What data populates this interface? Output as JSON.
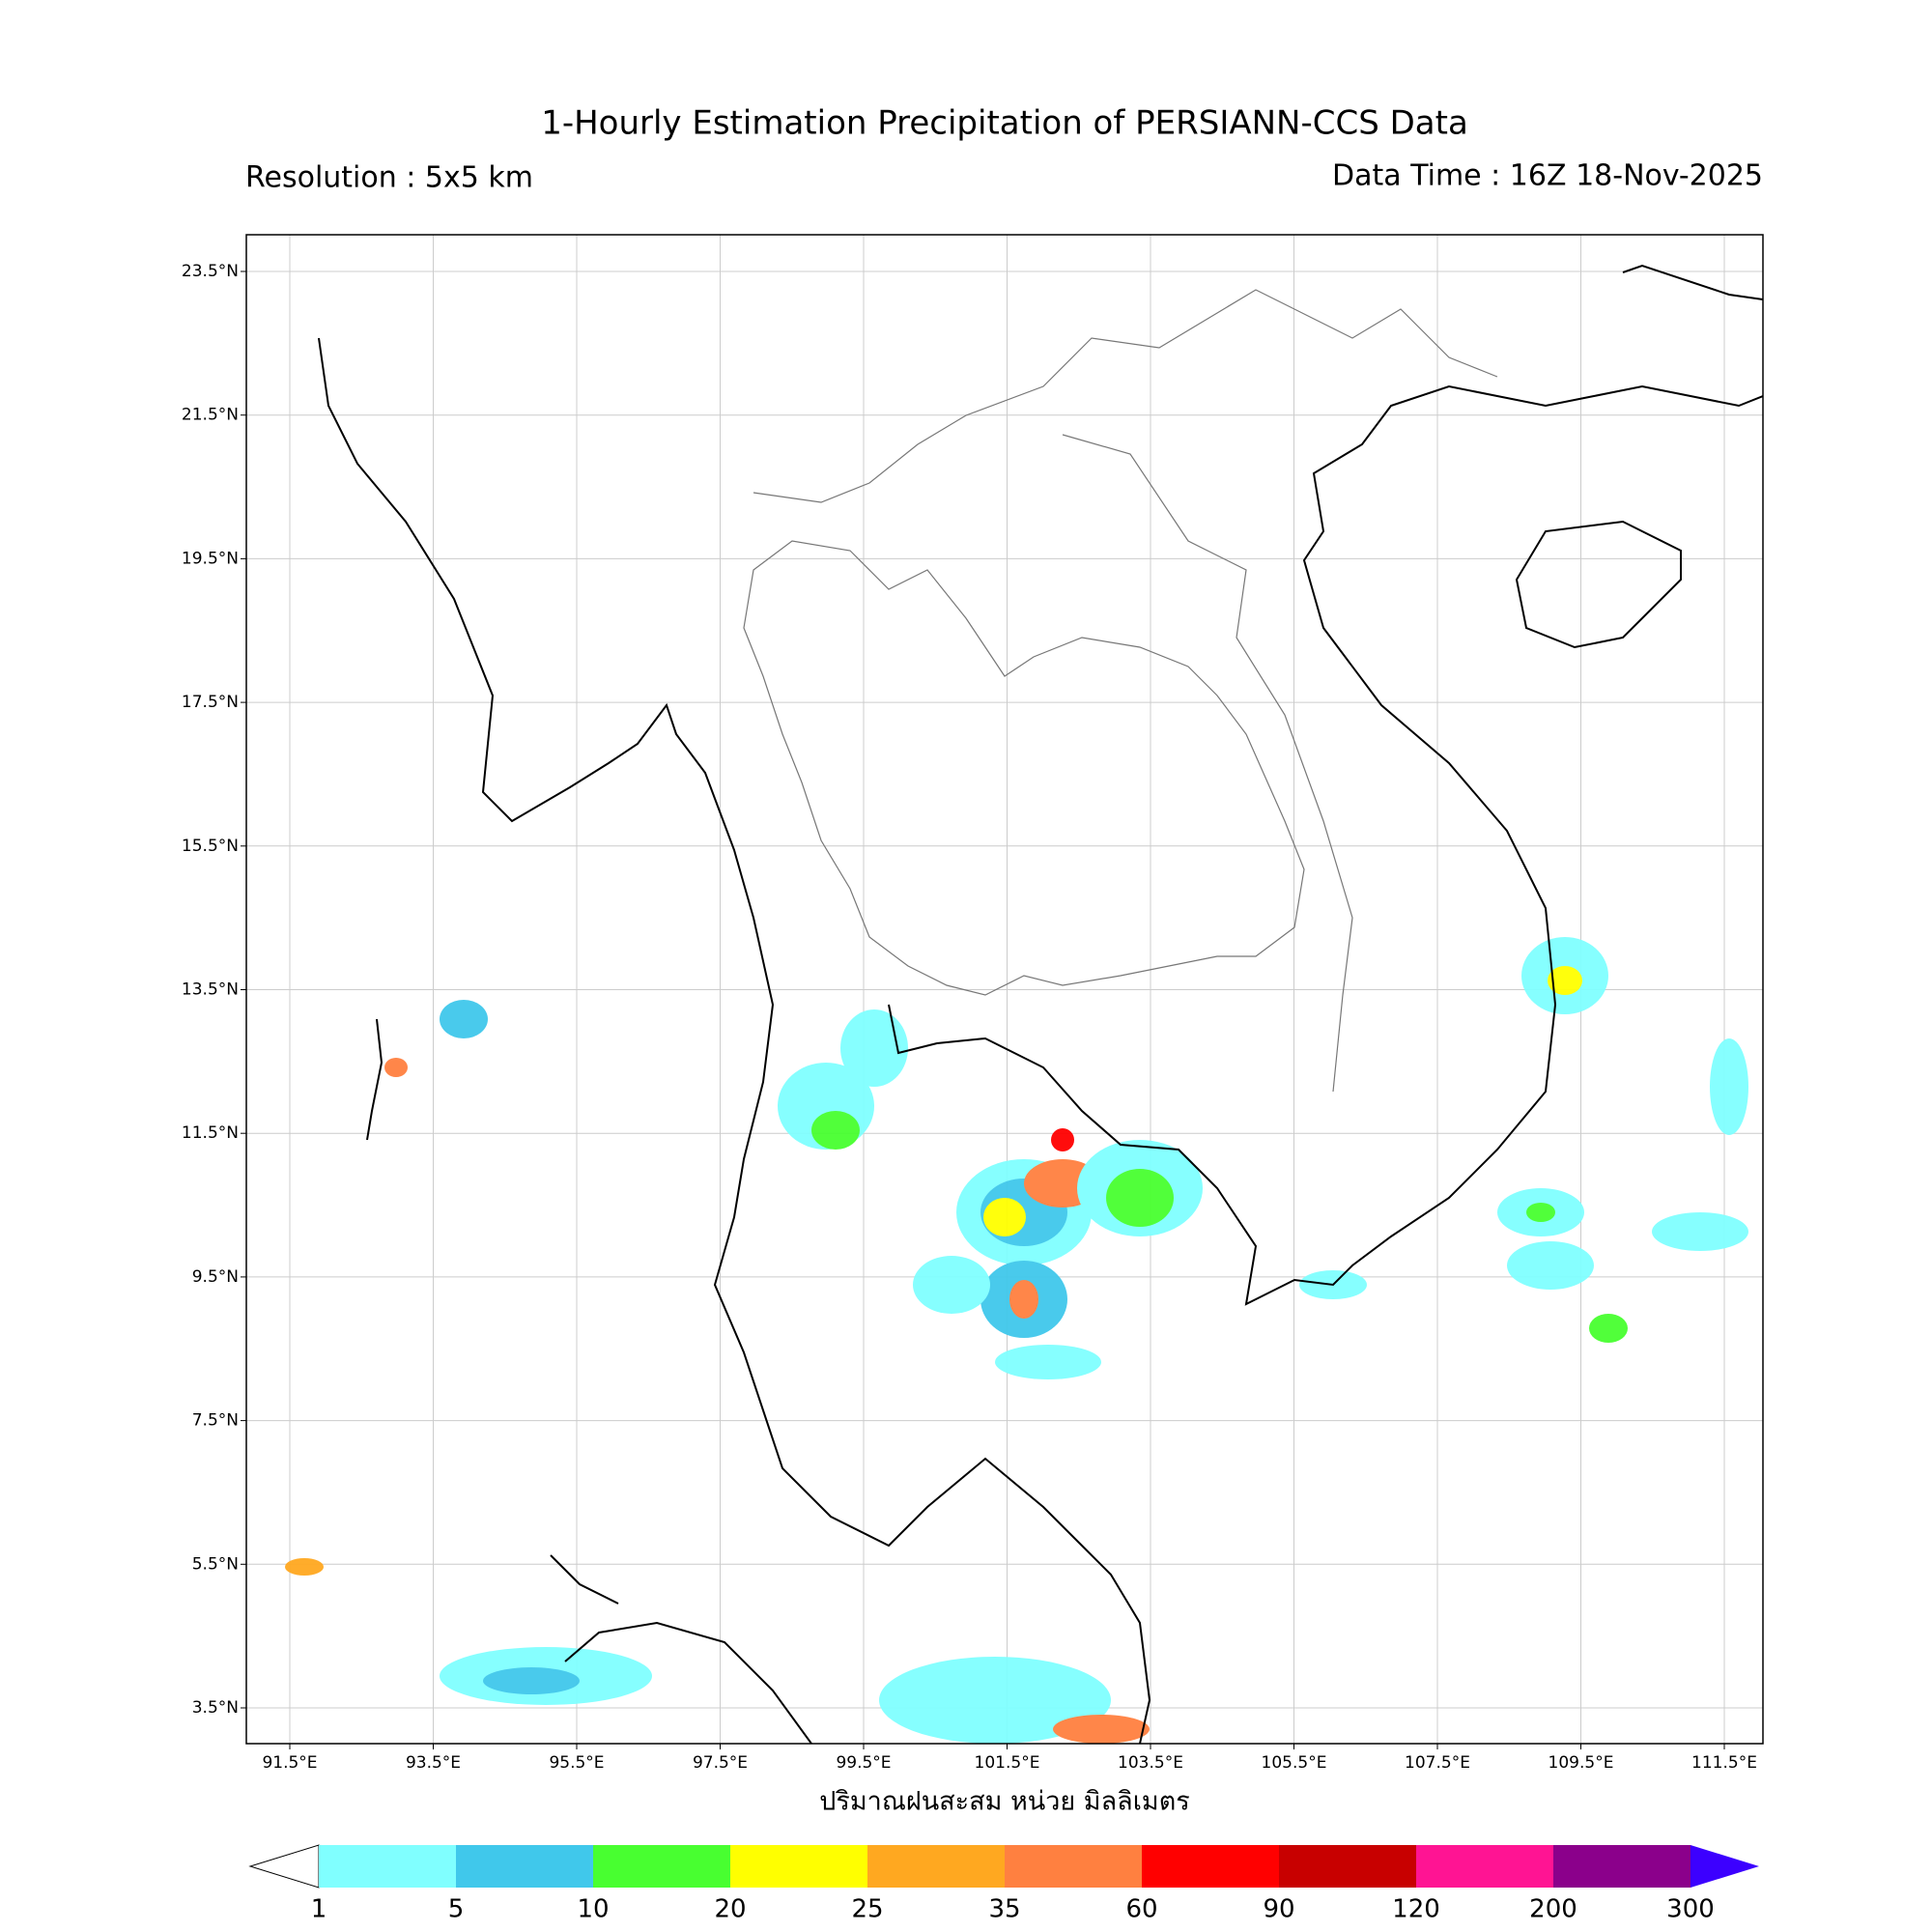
{
  "header": {
    "title": "1-Hourly Estimation Precipitation of PERSIANN-CCS Data",
    "resolution": "Resolution : 5x5 km",
    "data_time": "Data Time : 16Z 18-Nov-2025"
  },
  "map": {
    "lon_ticks": [
      "91.5°E",
      "93.5°E",
      "95.5°E",
      "97.5°E",
      "99.5°E",
      "101.5°E",
      "103.5°E",
      "105.5°E",
      "107.5°E",
      "109.5°E",
      "111.5°E"
    ],
    "lat_ticks": [
      "23.5°N",
      "21.5°N",
      "19.5°N",
      "17.5°N",
      "15.5°N",
      "13.5°N",
      "11.5°N",
      "9.5°N",
      "7.5°N",
      "5.5°N",
      "3.5°N"
    ],
    "x_label": "ปริมาณฝนสะสม หน่วย มิลลิเมตร"
  },
  "colorbar": {
    "levels": [
      1,
      5,
      10,
      20,
      25,
      35,
      60,
      90,
      120,
      200,
      300
    ],
    "colors": [
      "#80ffff",
      "#40c8eb",
      "#48ff30",
      "#ffff00",
      "#ffa820",
      "#ff8040",
      "#ff0000",
      "#c80000",
      "#ff1493",
      "#8b008b"
    ],
    "over_color": "#3c00ff"
  }
}
